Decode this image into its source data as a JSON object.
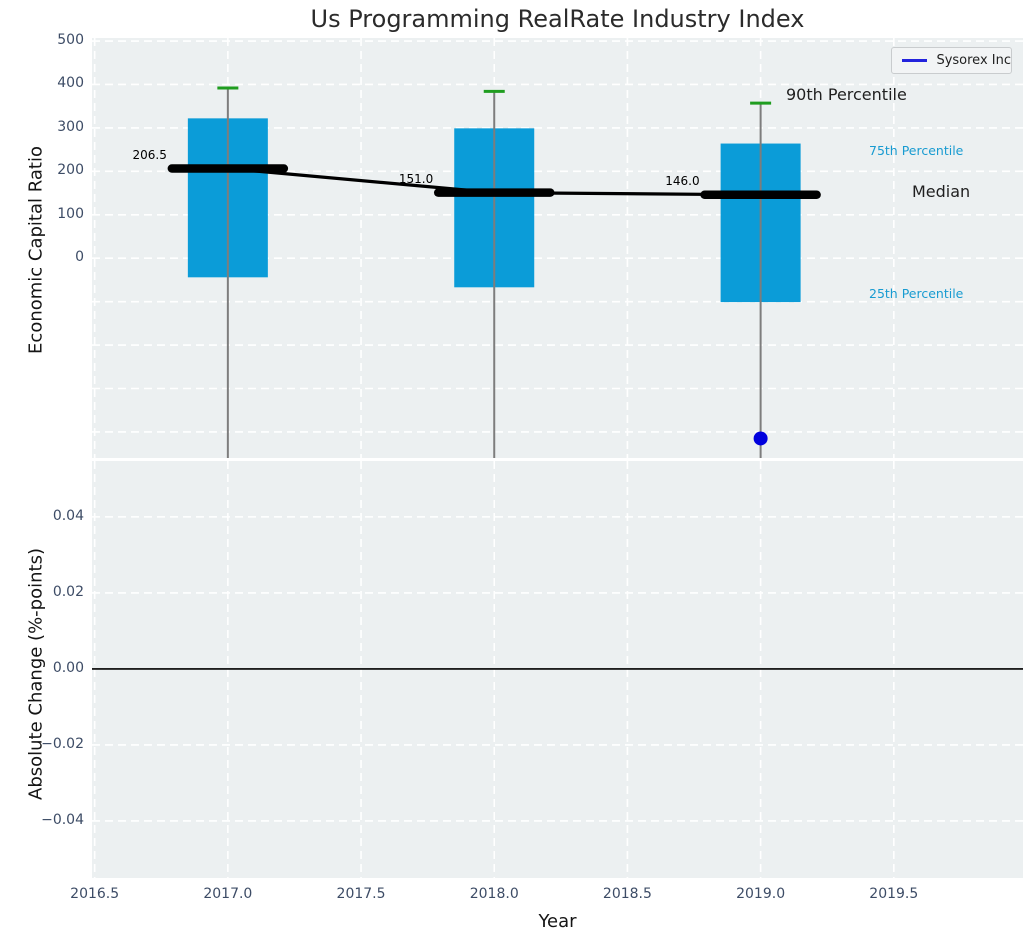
{
  "title": "Us Programming RealRate Industry Index",
  "legend": {
    "label": "Sysorex Inc"
  },
  "annotations": {
    "p90": "90th Percentile",
    "p75": "75th Percentile",
    "median": "Median",
    "p25": "25th Percentile"
  },
  "colors": {
    "axes_bg": "#ecf0f1",
    "grid": "#ffffff",
    "box_fill": "#0b9cd8",
    "percentile90_green": "#1f9d1f",
    "whisker_grey": "#7d7d7d",
    "median_black": "#000000",
    "sysorex_blue": "#0000dd",
    "legend_line_blue": "#2323dd",
    "tick_label": "#3d4c66",
    "percentile_text": "#189bd1",
    "zero_line_black": "#000000"
  },
  "xaxis": {
    "label": "Year",
    "tick_labels": [
      "2016.5",
      "2017.0",
      "2017.5",
      "2018.0",
      "2018.5",
      "2019.0",
      "2019.5"
    ],
    "tick_values": [
      2016.5,
      2017.0,
      2017.5,
      2018.0,
      2018.5,
      2019.0,
      2019.5
    ],
    "xlim": [
      2016.49,
      2019.985
    ]
  },
  "chart_data": [
    {
      "type": "box-percentile-with-median-line",
      "title": "Us Programming RealRate Industry Index",
      "ylabel": "Economic Capital Ratio",
      "ylim": [
        -460,
        507
      ],
      "ytick_labels": [
        "500",
        "400",
        "300",
        "200",
        "100",
        "0"
      ],
      "ytick_values": [
        500,
        400,
        300,
        200,
        100,
        0
      ],
      "ygrid_values": [
        500,
        400,
        300,
        200,
        100,
        0,
        -100,
        -200,
        -300,
        -400
      ],
      "grid": "white-dashed",
      "x": [
        2017,
        2018,
        2019
      ],
      "median": [
        206.5,
        151.0,
        146.0
      ],
      "median_labels": [
        "206.5",
        "151.0",
        "146.0"
      ],
      "percentile_90": [
        392,
        384,
        357
      ],
      "percentile_75": [
        322,
        299,
        264
      ],
      "percentile_25": [
        -44,
        -67,
        -101
      ],
      "whisker_low_clipped_at": -460,
      "series": [
        {
          "name": "Sysorex Inc",
          "points": [
            {
              "x": 2019,
              "y": -415
            }
          ]
        }
      ],
      "legend_position": "upper right"
    },
    {
      "type": "line",
      "ylabel": "Absolute Change (%-points)",
      "xlabel": "Year",
      "ylim": [
        -0.055,
        0.0547
      ],
      "ytick_labels": [
        "0.04",
        "0.02",
        "0.00",
        "−0.02",
        "−0.04"
      ],
      "ytick_values": [
        0.04,
        0.02,
        0.0,
        -0.02,
        -0.04
      ],
      "grid": "white-dashed",
      "zero_line": 0.0,
      "series": []
    }
  ]
}
